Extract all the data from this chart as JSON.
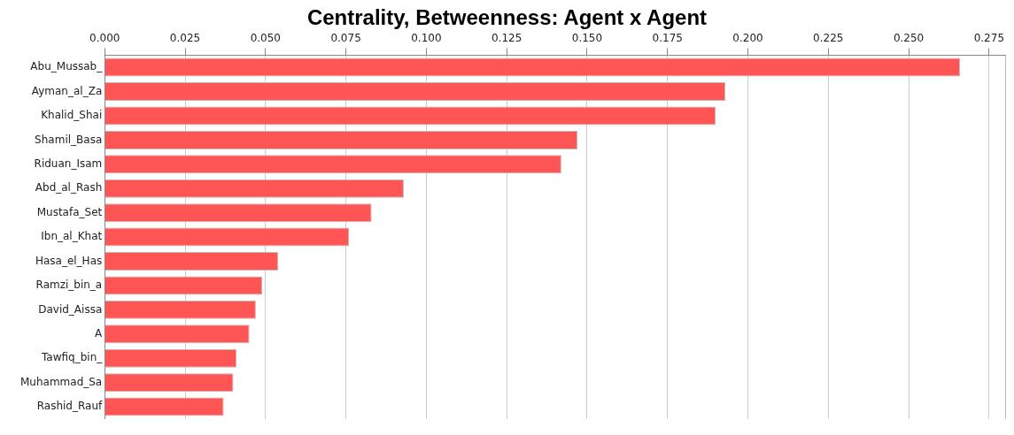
{
  "chart_data": {
    "type": "bar",
    "orientation": "horizontal",
    "title": "Centrality, Betweenness: Agent x Agent",
    "categories": [
      "Abu_Mussab_",
      "Ayman_al_Za",
      "Khalid_Shai",
      "Shamil_Basa",
      "Riduan_Isam",
      "Abd_al_Rash",
      "Mustafa_Set",
      "Ibn_al_Khat",
      "Hasa_el_Has",
      "Ramzi_bin_a",
      "David_Aissa",
      "A",
      "Tawfiq_bin_",
      "Muhammad_Sa",
      "Rashid_Rauf"
    ],
    "values": [
      0.266,
      0.193,
      0.19,
      0.147,
      0.142,
      0.093,
      0.083,
      0.076,
      0.054,
      0.049,
      0.047,
      0.045,
      0.041,
      0.04,
      0.037
    ],
    "color": "#ff5555",
    "xlim": [
      0,
      0.28
    ],
    "xticks": [
      {
        "value": 0,
        "label": "0.000"
      },
      {
        "value": 0.025,
        "label": "0.025"
      },
      {
        "value": 0.05,
        "label": "0.050"
      },
      {
        "value": 0.075,
        "label": "0.075"
      },
      {
        "value": 0.1,
        "label": "0.100"
      },
      {
        "value": 0.125,
        "label": "0.125"
      },
      {
        "value": 0.15,
        "label": "0.150"
      },
      {
        "value": 0.175,
        "label": "0.175"
      },
      {
        "value": 0.2,
        "label": "0.200"
      },
      {
        "value": 0.225,
        "label": "0.225"
      },
      {
        "value": 0.25,
        "label": "0.250"
      },
      {
        "value": 0.275,
        "label": "0.275"
      }
    ],
    "grid": "x",
    "legend": false
  }
}
